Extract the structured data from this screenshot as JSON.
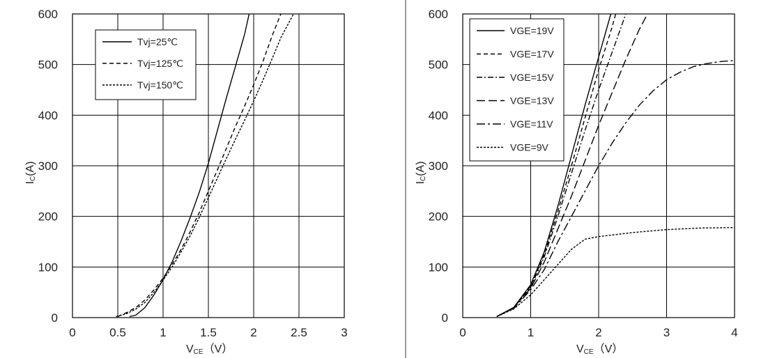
{
  "chart_data": [
    {
      "type": "line",
      "xlabel_main": "V",
      "xlabel_sub": "CE",
      "xlabel_unit": "（V）",
      "ylabel_main": "I",
      "ylabel_sub": "C",
      "ylabel_unit": "(A)",
      "xlim": [
        0,
        3
      ],
      "ylim": [
        0,
        600
      ],
      "xticks": [
        0,
        0.5,
        1,
        1.5,
        2,
        2.5,
        3
      ],
      "xtick_labels": [
        "0",
        "0.5",
        "1",
        "1.5",
        "2",
        "2.5",
        "3"
      ],
      "yticks": [
        0,
        100,
        200,
        300,
        400,
        500,
        600
      ],
      "ytick_labels": [
        "0",
        "100",
        "200",
        "300",
        "400",
        "500",
        "600"
      ],
      "grid": true,
      "legend_position": "top-left",
      "series": [
        {
          "name": "Tvj=25℃",
          "dash": "solid",
          "points": [
            [
              0.63,
              2
            ],
            [
              0.7,
              5
            ],
            [
              0.8,
              20
            ],
            [
              0.9,
              45
            ],
            [
              1.0,
              75
            ],
            [
              1.1,
              110
            ],
            [
              1.2,
              152
            ],
            [
              1.3,
              198
            ],
            [
              1.4,
              248
            ],
            [
              1.5,
              305
            ],
            [
              1.6,
              370
            ],
            [
              1.7,
              435
            ],
            [
              1.8,
              497
            ],
            [
              1.9,
              560
            ],
            [
              1.95,
              600
            ]
          ]
        },
        {
          "name": "Tvj=125℃",
          "dash": "dashed",
          "points": [
            [
              0.5,
              2
            ],
            [
              0.6,
              10
            ],
            [
              0.7,
              20
            ],
            [
              0.8,
              35
            ],
            [
              0.9,
              55
            ],
            [
              1.0,
              78
            ],
            [
              1.1,
              105
            ],
            [
              1.2,
              135
            ],
            [
              1.3,
              170
            ],
            [
              1.4,
              208
            ],
            [
              1.5,
              250
            ],
            [
              1.6,
              292
            ],
            [
              1.7,
              335
            ],
            [
              1.8,
              378
            ],
            [
              1.9,
              418
            ],
            [
              2.0,
              460
            ],
            [
              2.1,
              505
            ],
            [
              2.2,
              555
            ],
            [
              2.3,
              600
            ]
          ]
        },
        {
          "name": "Tvj=150℃",
          "dash": "dotted",
          "points": [
            [
              0.48,
              2
            ],
            [
              0.6,
              8
            ],
            [
              0.7,
              17
            ],
            [
              0.8,
              30
            ],
            [
              0.9,
              50
            ],
            [
              1.0,
              74
            ],
            [
              1.1,
              100
            ],
            [
              1.2,
              130
            ],
            [
              1.3,
              162
            ],
            [
              1.4,
              198
            ],
            [
              1.5,
              237
            ],
            [
              1.6,
              276
            ],
            [
              1.7,
              315
            ],
            [
              1.8,
              353
            ],
            [
              1.9,
              390
            ],
            [
              2.0,
              428
            ],
            [
              2.1,
              468
            ],
            [
              2.2,
              510
            ],
            [
              2.3,
              553
            ],
            [
              2.44,
              600
            ]
          ]
        }
      ]
    },
    {
      "type": "line",
      "xlabel_main": "V",
      "xlabel_sub": "CE",
      "xlabel_unit": "（V）",
      "ylabel_main": "I",
      "ylabel_sub": "C",
      "ylabel_unit": "(A)",
      "xlim": [
        0,
        4
      ],
      "ylim": [
        0,
        600
      ],
      "xticks": [
        0,
        1,
        2,
        3,
        4
      ],
      "xtick_labels": [
        "0",
        "1",
        "2",
        "3",
        "4"
      ],
      "yticks": [
        0,
        100,
        200,
        300,
        400,
        500,
        600
      ],
      "ytick_labels": [
        "0",
        "100",
        "200",
        "300",
        "400",
        "500",
        "600"
      ],
      "grid": true,
      "legend_position": "top-left",
      "series": [
        {
          "name": "VGE=19V",
          "dash": "solid",
          "points": [
            [
              0.5,
              2
            ],
            [
              0.75,
              20
            ],
            [
              1.0,
              65
            ],
            [
              1.2,
              130
            ],
            [
              1.4,
              220
            ],
            [
              1.6,
              320
            ],
            [
              1.8,
              420
            ],
            [
              2.0,
              515
            ],
            [
              2.18,
              600
            ]
          ]
        },
        {
          "name": "VGE=17V",
          "dash": "dashed",
          "points": [
            [
              0.5,
              2
            ],
            [
              0.75,
              20
            ],
            [
              1.0,
              62
            ],
            [
              1.2,
              125
            ],
            [
              1.4,
              210
            ],
            [
              1.6,
              300
            ],
            [
              1.8,
              395
            ],
            [
              2.0,
              490
            ],
            [
              2.2,
              575
            ],
            [
              2.25,
              600
            ]
          ]
        },
        {
          "name": "VGE=15V",
          "dash": "dashdot",
          "points": [
            [
              0.5,
              2
            ],
            [
              0.75,
              20
            ],
            [
              1.0,
              60
            ],
            [
              1.2,
              120
            ],
            [
              1.4,
              200
            ],
            [
              1.6,
              285
            ],
            [
              1.8,
              370
            ],
            [
              2.0,
              450
            ],
            [
              2.2,
              525
            ],
            [
              2.4,
              600
            ]
          ]
        },
        {
          "name": "VGE=13V",
          "dash": "longdash",
          "points": [
            [
              0.5,
              2
            ],
            [
              0.75,
              20
            ],
            [
              1.0,
              58
            ],
            [
              1.2,
              110
            ],
            [
              1.4,
              175
            ],
            [
              1.6,
              240
            ],
            [
              1.8,
              310
            ],
            [
              2.0,
              380
            ],
            [
              2.2,
              445
            ],
            [
              2.4,
              510
            ],
            [
              2.6,
              570
            ],
            [
              2.72,
              600
            ]
          ]
        },
        {
          "name": "VGE=11V",
          "dash": "longdashdot",
          "points": [
            [
              0.5,
              2
            ],
            [
              0.75,
              18
            ],
            [
              1.0,
              55
            ],
            [
              1.2,
              95
            ],
            [
              1.4,
              150
            ],
            [
              1.6,
              200
            ],
            [
              1.8,
              250
            ],
            [
              2.0,
              300
            ],
            [
              2.2,
              345
            ],
            [
              2.4,
              385
            ],
            [
              2.6,
              420
            ],
            [
              2.8,
              448
            ],
            [
              3.0,
              470
            ],
            [
              3.2,
              485
            ],
            [
              3.4,
              496
            ],
            [
              3.6,
              502
            ],
            [
              3.8,
              506
            ],
            [
              4.0,
              508
            ]
          ]
        },
        {
          "name": "VGE=9V",
          "dash": "dotted",
          "points": [
            [
              0.5,
              2
            ],
            [
              0.75,
              17
            ],
            [
              1.0,
              45
            ],
            [
              1.2,
              75
            ],
            [
              1.4,
              105
            ],
            [
              1.6,
              135
            ],
            [
              1.8,
              155
            ],
            [
              2.0,
              160
            ],
            [
              2.5,
              168
            ],
            [
              3.0,
              174
            ],
            [
              3.5,
              177
            ],
            [
              4.0,
              178
            ]
          ]
        }
      ]
    }
  ]
}
